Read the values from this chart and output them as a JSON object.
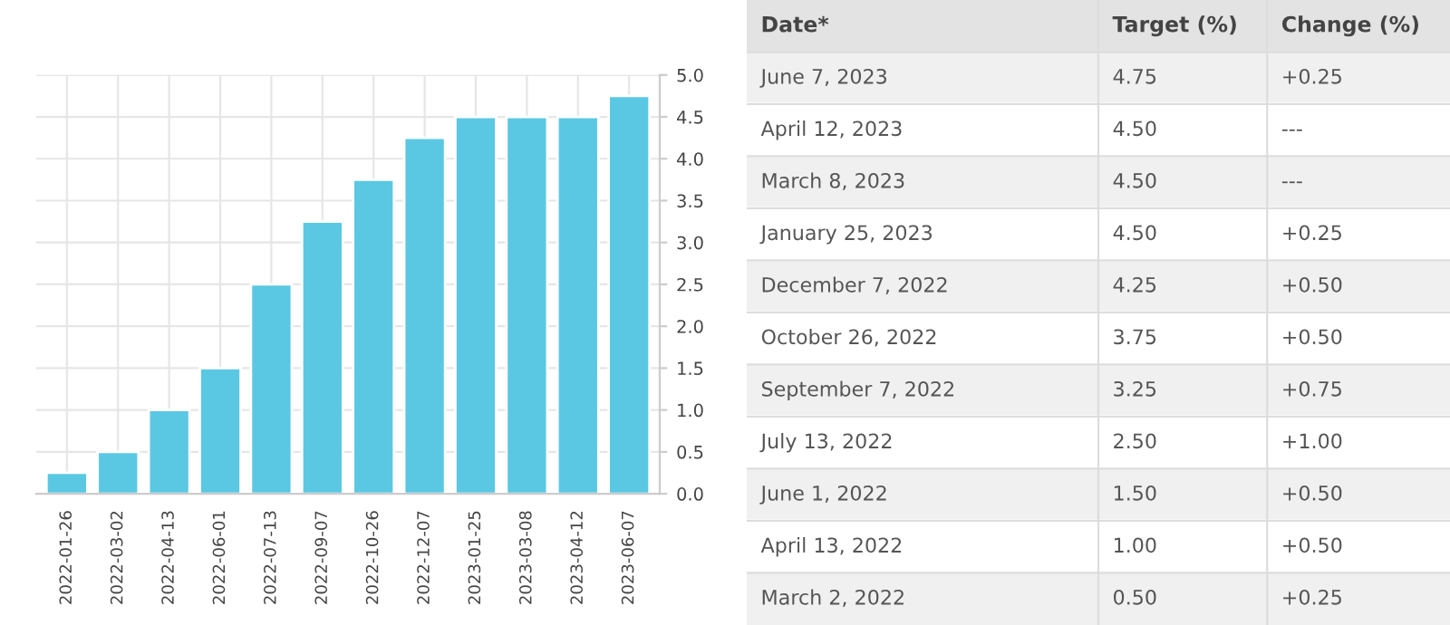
{
  "chart_data": [
    {
      "type": "bar",
      "categories": [
        "2022-01-26",
        "2022-03-02",
        "2022-04-13",
        "2022-06-01",
        "2022-07-13",
        "2022-09-07",
        "2022-10-26",
        "2022-12-07",
        "2023-01-25",
        "2023-03-08",
        "2023-04-12",
        "2023-06-07"
      ],
      "values": [
        0.25,
        0.5,
        1.0,
        1.5,
        2.5,
        3.25,
        3.75,
        4.25,
        4.5,
        4.5,
        4.5,
        4.75
      ],
      "color": "#5bc8e3",
      "ylim": [
        0,
        5.0
      ],
      "yticks": [
        {
          "value": 0,
          "label": "0.0"
        },
        {
          "value": 0.5,
          "label": "0.5"
        },
        {
          "value": 1.0,
          "label": "1.0"
        },
        {
          "value": 1.5,
          "label": "1.5"
        },
        {
          "value": 2.0,
          "label": "2.0"
        },
        {
          "value": 2.5,
          "label": "2.5"
        },
        {
          "value": 3.0,
          "label": "3.0"
        },
        {
          "value": 3.5,
          "label": "3.5"
        },
        {
          "value": 4.0,
          "label": "4.0"
        },
        {
          "value": 4.5,
          "label": "4.5"
        },
        {
          "value": 5.0,
          "label": "5.0"
        }
      ],
      "grid": true
    },
    {
      "type": "other",
      "categories": [
        "Date*",
        "Target (%)",
        "Change (%)"
      ],
      "annotations": [
        "June 7, 2023",
        "4.75",
        "+0.25",
        "April 12, 2023",
        "4.50",
        "---",
        "March 8, 2023",
        "4.50",
        "---",
        "January 25, 2023",
        "4.50",
        "+0.25",
        "December 7, 2022",
        "4.25",
        "+0.50",
        "October 26, 2022",
        "3.75",
        "+0.50",
        "September 7, 2022",
        "3.25",
        "+0.75",
        "July 13, 2022",
        "2.50",
        "+1.00",
        "June 1, 2022",
        "1.50",
        "+0.50",
        "April 13, 2022",
        "1.00",
        "+0.50",
        "March 2, 2022",
        "0.50",
        "+0.25"
      ]
    }
  ]
}
